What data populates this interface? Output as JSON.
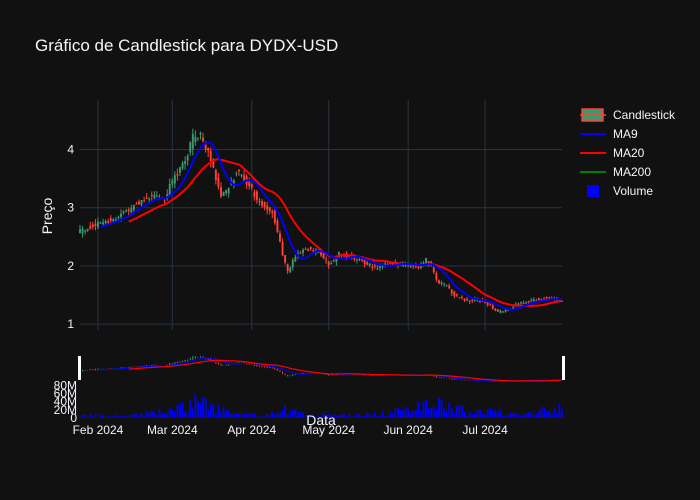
{
  "colors": {
    "background": "#111111",
    "grid": "#283442",
    "up": "#3d9970",
    "down": "#ff4136",
    "ma9": "#0000ff",
    "ma20": "#ff0000",
    "ma200": "#008000",
    "volume": "#0000ff",
    "text": "#f2f5fa"
  },
  "chart_data": {
    "type": "candlestick",
    "title": "Gráfico de Candlestick para DYDX-USD",
    "xlabel": "Data",
    "ylabel": "Preço",
    "x_range": [
      "2024-01-25",
      "2024-07-31"
    ],
    "x_ticks": [
      {
        "date": "2024-02-01",
        "label": "Feb 2024"
      },
      {
        "date": "2024-03-01",
        "label": "Mar 2024"
      },
      {
        "date": "2024-04-01",
        "label": "Apr 2024"
      },
      {
        "date": "2024-05-01",
        "label": "May 2024"
      },
      {
        "date": "2024-06-01",
        "label": "Jun 2024"
      },
      {
        "date": "2024-07-01",
        "label": "Jul 2024"
      }
    ],
    "price_ylim": [
      0.9,
      4.85
    ],
    "price_ticks": [
      1,
      2,
      3,
      4
    ],
    "volume_ylim": [
      0,
      130000000
    ],
    "volume_ticks": [
      {
        "value": 0,
        "label": "0"
      },
      {
        "value": 20000000,
        "label": "20M"
      },
      {
        "value": 40000000,
        "label": "40M"
      },
      {
        "value": 60000000,
        "label": "60M"
      },
      {
        "value": 80000000,
        "label": "80M"
      }
    ],
    "legend": {
      "placement": "right",
      "entries": [
        "Candlestick",
        "MA9",
        "MA20",
        "MA200",
        "Volume"
      ]
    },
    "grid": true,
    "price_keypoints": [
      [
        "2024-01-25",
        2.6
      ],
      [
        "2024-02-01",
        2.72
      ],
      [
        "2024-02-08",
        2.82
      ],
      [
        "2024-02-12",
        2.95
      ],
      [
        "2024-02-18",
        3.1
      ],
      [
        "2024-02-22",
        3.2
      ],
      [
        "2024-02-27",
        3.15
      ],
      [
        "2024-03-02",
        3.55
      ],
      [
        "2024-03-06",
        3.8
      ],
      [
        "2024-03-09",
        4.2
      ],
      [
        "2024-03-12",
        4.25
      ],
      [
        "2024-03-14",
        4.05
      ],
      [
        "2024-03-17",
        3.7
      ],
      [
        "2024-03-20",
        3.2
      ],
      [
        "2024-03-22",
        3.3
      ],
      [
        "2024-03-26",
        3.6
      ],
      [
        "2024-03-30",
        3.45
      ],
      [
        "2024-04-03",
        3.15
      ],
      [
        "2024-04-06",
        3.0
      ],
      [
        "2024-04-09",
        2.95
      ],
      [
        "2024-04-11",
        2.6
      ],
      [
        "2024-04-13",
        2.2
      ],
      [
        "2024-04-15",
        1.9
      ],
      [
        "2024-04-18",
        2.15
      ],
      [
        "2024-04-22",
        2.3
      ],
      [
        "2024-04-27",
        2.25
      ],
      [
        "2024-05-01",
        2.0
      ],
      [
        "2024-05-05",
        2.2
      ],
      [
        "2024-05-10",
        2.15
      ],
      [
        "2024-05-15",
        2.05
      ],
      [
        "2024-05-20",
        1.95
      ],
      [
        "2024-05-25",
        2.05
      ],
      [
        "2024-05-31",
        2.02
      ],
      [
        "2024-06-05",
        2.0
      ],
      [
        "2024-06-08",
        2.1
      ],
      [
        "2024-06-10",
        2.0
      ],
      [
        "2024-06-12",
        1.75
      ],
      [
        "2024-06-16",
        1.65
      ],
      [
        "2024-06-19",
        1.5
      ],
      [
        "2024-06-24",
        1.4
      ],
      [
        "2024-06-28",
        1.42
      ],
      [
        "2024-07-01",
        1.38
      ],
      [
        "2024-07-06",
        1.2
      ],
      [
        "2024-07-10",
        1.25
      ],
      [
        "2024-07-14",
        1.35
      ],
      [
        "2024-07-20",
        1.42
      ],
      [
        "2024-07-26",
        1.45
      ],
      [
        "2024-07-31",
        1.4
      ]
    ],
    "volume_keypoints": [
      [
        "2024-01-25",
        5000000
      ],
      [
        "2024-02-15",
        7000000
      ],
      [
        "2024-02-27",
        15000000
      ],
      [
        "2024-03-05",
        25000000
      ],
      [
        "2024-03-10",
        40000000
      ],
      [
        "2024-03-16",
        30000000
      ],
      [
        "2024-03-25",
        9000000
      ],
      [
        "2024-04-08",
        7000000
      ],
      [
        "2024-04-13",
        25000000
      ],
      [
        "2024-04-20",
        10000000
      ],
      [
        "2024-05-10",
        6000000
      ],
      [
        "2024-05-25",
        12000000
      ],
      [
        "2024-06-01",
        20000000
      ],
      [
        "2024-06-05",
        42000000
      ],
      [
        "2024-06-12",
        38000000
      ],
      [
        "2024-06-20",
        20000000
      ],
      [
        "2024-07-05",
        15000000
      ],
      [
        "2024-07-15",
        12000000
      ],
      [
        "2024-07-25",
        20000000
      ],
      [
        "2024-07-31",
        30000000
      ]
    ]
  }
}
